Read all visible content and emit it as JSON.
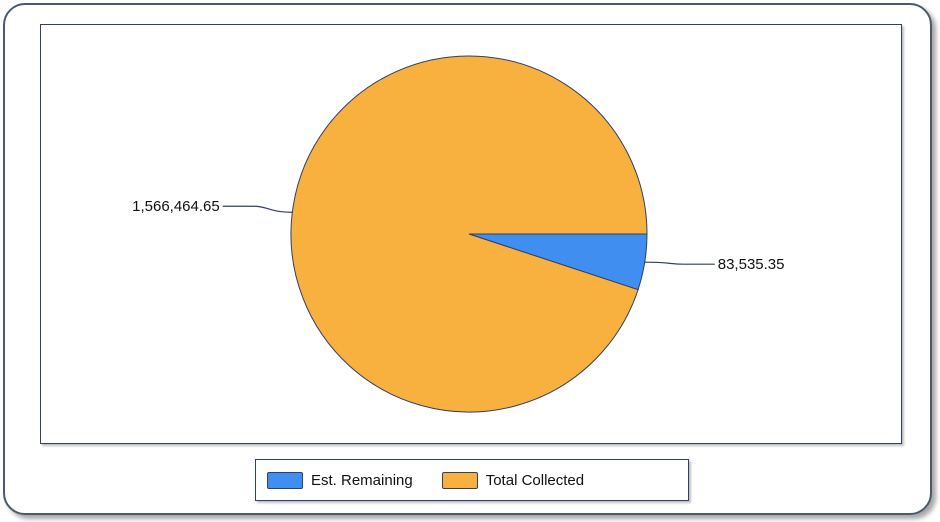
{
  "chart_data": {
    "type": "pie",
    "title": "",
    "categories": [
      "Est. Remaining",
      "Total Collected"
    ],
    "values": [
      83535.35,
      1566464.65
    ],
    "value_labels": [
      "83,535.35",
      "1,566,464.65"
    ],
    "colors": [
      "#3f8ef0",
      "#f8b13f"
    ],
    "legend": {
      "position": "bottom",
      "items": [
        {
          "label": "Est. Remaining",
          "color": "#3f8ef0"
        },
        {
          "label": "Total Collected",
          "color": "#f8b13f"
        }
      ]
    }
  }
}
